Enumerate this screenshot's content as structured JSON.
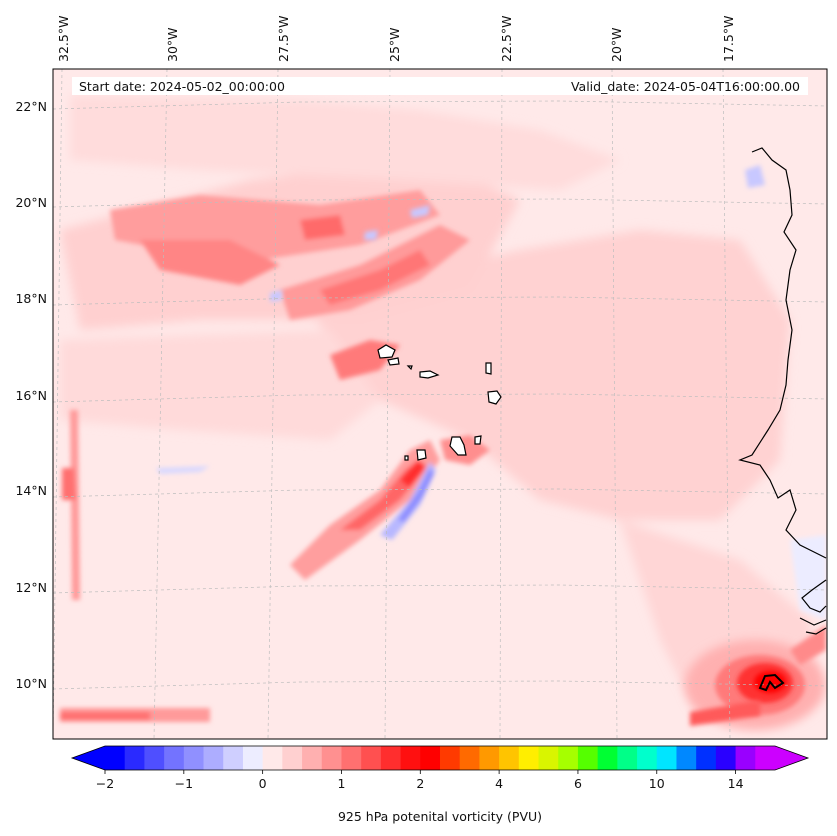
{
  "header": {
    "start_date": "Start date: 2024-05-02_00:00:00",
    "valid_date": "Valid_date: 2024-05-04T16:00:00.00"
  },
  "axes": {
    "lon_labels": [
      "32.5°W",
      "30°W",
      "27.5°W",
      "25°W",
      "22.5°W",
      "20°W",
      "17.5°W"
    ],
    "lat_labels": [
      "22°N",
      "20°N",
      "18°N",
      "16°N",
      "14°N",
      "12°N",
      "10°N"
    ]
  },
  "colorbar": {
    "label": "925 hPa potenital vorticity (PVU)",
    "tick_labels": [
      "−2",
      "−1",
      "0",
      "1",
      "2",
      "4",
      "6",
      "10",
      "14"
    ],
    "colors": [
      "#0000ff",
      "#2a2aff",
      "#4f4fff",
      "#7373ff",
      "#9090ff",
      "#adadff",
      "#cfcfff",
      "#ededff",
      "#ffe9e9",
      "#ffd0d0",
      "#ffb0b0",
      "#ff9090",
      "#ff7070",
      "#ff5050",
      "#ff2e2e",
      "#ff1010",
      "#ff0000",
      "#ff3a00",
      "#ff6a00",
      "#ff9900",
      "#ffc400",
      "#ffee00",
      "#d9f500",
      "#a6ff00",
      "#55ff00",
      "#00ff33",
      "#00ff88",
      "#00ffcc",
      "#00e5ff",
      "#0088ff",
      "#0030ff",
      "#2a00ff",
      "#9900ff",
      "#cc00ff"
    ],
    "under_color": "#0000ff",
    "over_color": "#cc00ff"
  }
}
